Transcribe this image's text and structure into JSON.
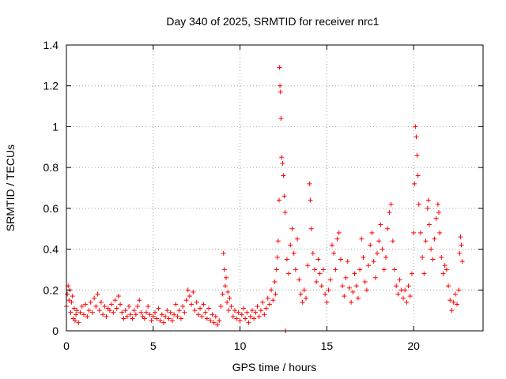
{
  "chart_data": {
    "type": "scatter",
    "title": "Day 340 of 2025, SRMTID for receiver nrc1",
    "xlabel": "GPS time / hours",
    "ylabel": "SRMTID / TECUs",
    "xlim": [
      0,
      24
    ],
    "ylim": [
      0,
      1.4
    ],
    "xticks": [
      0,
      5,
      10,
      15,
      20
    ],
    "xtick_labels": [
      "0",
      "5",
      "10",
      "15",
      "20"
    ],
    "yticks": [
      0,
      0.2,
      0.4,
      0.6,
      0.8,
      1.0,
      1.2,
      1.4
    ],
    "ytick_labels": [
      "0",
      "0.2",
      "0.4",
      "0.6",
      "0.8",
      "1",
      "1.2",
      "1.4"
    ],
    "grid": true,
    "marker": "+",
    "marker_color": "#ff0000",
    "series": [
      {
        "name": "SRMTID",
        "points": [
          [
            0.0,
            0.12
          ],
          [
            0.05,
            0.18
          ],
          [
            0.1,
            0.22
          ],
          [
            0.15,
            0.15
          ],
          [
            0.2,
            0.2
          ],
          [
            0.25,
            0.09
          ],
          [
            0.3,
            0.14
          ],
          [
            0.35,
            0.17
          ],
          [
            0.4,
            0.06
          ],
          [
            0.45,
            0.11
          ],
          [
            0.5,
            0.05
          ],
          [
            0.55,
            0.08
          ],
          [
            0.6,
            0.1
          ],
          [
            0.7,
            0.04
          ],
          [
            0.8,
            0.09
          ],
          [
            0.9,
            0.12
          ],
          [
            1.0,
            0.08
          ],
          [
            1.1,
            0.13
          ],
          [
            1.2,
            0.07
          ],
          [
            1.3,
            0.1
          ],
          [
            1.4,
            0.14
          ],
          [
            1.5,
            0.09
          ],
          [
            1.6,
            0.16
          ],
          [
            1.7,
            0.12
          ],
          [
            1.8,
            0.18
          ],
          [
            1.9,
            0.1
          ],
          [
            2.0,
            0.14
          ],
          [
            2.1,
            0.08
          ],
          [
            2.2,
            0.12
          ],
          [
            2.3,
            0.07
          ],
          [
            2.4,
            0.11
          ],
          [
            2.5,
            0.1
          ],
          [
            2.6,
            0.13
          ],
          [
            2.7,
            0.09
          ],
          [
            2.8,
            0.15
          ],
          [
            2.9,
            0.11
          ],
          [
            3.0,
            0.17
          ],
          [
            3.1,
            0.13
          ],
          [
            3.2,
            0.09
          ],
          [
            3.3,
            0.06
          ],
          [
            3.4,
            0.1
          ],
          [
            3.5,
            0.07
          ],
          [
            3.6,
            0.12
          ],
          [
            3.7,
            0.08
          ],
          [
            3.8,
            0.06
          ],
          [
            3.9,
            0.1
          ],
          [
            4.0,
            0.08
          ],
          [
            4.1,
            0.12
          ],
          [
            4.2,
            0.15
          ],
          [
            4.3,
            0.09
          ],
          [
            4.4,
            0.07
          ],
          [
            4.5,
            0.06
          ],
          [
            4.6,
            0.09
          ],
          [
            4.7,
            0.12
          ],
          [
            4.8,
            0.08
          ],
          [
            4.9,
            0.05
          ],
          [
            5.0,
            0.07
          ],
          [
            5.1,
            0.09
          ],
          [
            5.2,
            0.06
          ],
          [
            5.3,
            0.11
          ],
          [
            5.4,
            0.05
          ],
          [
            5.5,
            0.08
          ],
          [
            5.6,
            0.04
          ],
          [
            5.7,
            0.07
          ],
          [
            5.8,
            0.1
          ],
          [
            5.9,
            0.06
          ],
          [
            6.0,
            0.09
          ],
          [
            6.1,
            0.05
          ],
          [
            6.2,
            0.08
          ],
          [
            6.3,
            0.13
          ],
          [
            6.4,
            0.07
          ],
          [
            6.5,
            0.1
          ],
          [
            6.6,
            0.06
          ],
          [
            6.7,
            0.12
          ],
          [
            6.8,
            0.09
          ],
          [
            6.9,
            0.15
          ],
          [
            7.0,
            0.2
          ],
          [
            7.1,
            0.17
          ],
          [
            7.2,
            0.13
          ],
          [
            7.3,
            0.19
          ],
          [
            7.4,
            0.1
          ],
          [
            7.5,
            0.14
          ],
          [
            7.6,
            0.08
          ],
          [
            7.7,
            0.11
          ],
          [
            7.8,
            0.07
          ],
          [
            7.9,
            0.13
          ],
          [
            8.0,
            0.09
          ],
          [
            8.1,
            0.06
          ],
          [
            8.2,
            0.11
          ],
          [
            8.3,
            0.05
          ],
          [
            8.4,
            0.08
          ],
          [
            8.5,
            0.04
          ],
          [
            8.6,
            0.07
          ],
          [
            8.7,
            0.03
          ],
          [
            8.8,
            0.05
          ],
          [
            8.9,
            0.12
          ],
          [
            9.0,
            0.18
          ],
          [
            9.05,
            0.38
          ],
          [
            9.1,
            0.3
          ],
          [
            9.15,
            0.22
          ],
          [
            9.2,
            0.26
          ],
          [
            9.25,
            0.14
          ],
          [
            9.3,
            0.19
          ],
          [
            9.35,
            0.1
          ],
          [
            9.4,
            0.16
          ],
          [
            9.5,
            0.12
          ],
          [
            9.6,
            0.07
          ],
          [
            9.7,
            0.1
          ],
          [
            9.8,
            0.06
          ],
          [
            9.9,
            0.09
          ],
          [
            10.0,
            0.05
          ],
          [
            10.1,
            0.08
          ],
          [
            10.2,
            0.11
          ],
          [
            10.3,
            0.06
          ],
          [
            10.4,
            0.09
          ],
          [
            10.5,
            0.04
          ],
          [
            10.6,
            0.07
          ],
          [
            10.7,
            0.1
          ],
          [
            10.8,
            0.06
          ],
          [
            10.9,
            0.09
          ],
          [
            11.0,
            0.12
          ],
          [
            11.1,
            0.07
          ],
          [
            11.2,
            0.1
          ],
          [
            11.3,
            0.14
          ],
          [
            11.4,
            0.08
          ],
          [
            11.5,
            0.11
          ],
          [
            11.6,
            0.16
          ],
          [
            11.7,
            0.13
          ],
          [
            11.8,
            0.2
          ],
          [
            11.9,
            0.15
          ],
          [
            12.0,
            0.24
          ],
          [
            12.05,
            0.18
          ],
          [
            12.1,
            0.3
          ],
          [
            12.15,
            0.36
          ],
          [
            12.2,
            0.44
          ],
          [
            12.25,
            0.64
          ],
          [
            12.28,
            1.29
          ],
          [
            12.3,
            1.2
          ],
          [
            12.33,
            1.17
          ],
          [
            12.36,
            1.04
          ],
          [
            12.4,
            0.85
          ],
          [
            12.45,
            0.82
          ],
          [
            12.5,
            0.76
          ],
          [
            12.55,
            0.66
          ],
          [
            12.6,
            0.58
          ],
          [
            12.62,
            0.0
          ],
          [
            12.7,
            0.35
          ],
          [
            12.8,
            0.28
          ],
          [
            12.9,
            0.42
          ],
          [
            13.0,
            0.5
          ],
          [
            13.1,
            0.38
          ],
          [
            13.2,
            0.3
          ],
          [
            13.3,
            0.45
          ],
          [
            13.4,
            0.25
          ],
          [
            13.5,
            0.18
          ],
          [
            13.6,
            0.14
          ],
          [
            13.7,
            0.2
          ],
          [
            13.8,
            0.16
          ],
          [
            13.9,
            0.32
          ],
          [
            14.0,
            0.72
          ],
          [
            14.05,
            0.64
          ],
          [
            14.1,
            0.5
          ],
          [
            14.2,
            0.38
          ],
          [
            14.3,
            0.3
          ],
          [
            14.4,
            0.24
          ],
          [
            14.5,
            0.35
          ],
          [
            14.6,
            0.28
          ],
          [
            14.7,
            0.22
          ],
          [
            14.8,
            0.3
          ],
          [
            14.9,
            0.18
          ],
          [
            15.0,
            0.14
          ],
          [
            15.1,
            0.2
          ],
          [
            15.2,
            0.25
          ],
          [
            15.3,
            0.42
          ],
          [
            15.4,
            0.38
          ],
          [
            15.5,
            0.3
          ],
          [
            15.6,
            0.45
          ],
          [
            15.7,
            0.48
          ],
          [
            15.8,
            0.35
          ],
          [
            15.9,
            0.22
          ],
          [
            16.0,
            0.17
          ],
          [
            16.1,
            0.26
          ],
          [
            16.2,
            0.34
          ],
          [
            16.3,
            0.21
          ],
          [
            16.4,
            0.14
          ],
          [
            16.5,
            0.19
          ],
          [
            16.6,
            0.28
          ],
          [
            16.7,
            0.22
          ],
          [
            16.8,
            0.16
          ],
          [
            16.9,
            0.3
          ],
          [
            17.0,
            0.45
          ],
          [
            17.1,
            0.36
          ],
          [
            17.2,
            0.24
          ],
          [
            17.3,
            0.2
          ],
          [
            17.4,
            0.32
          ],
          [
            17.5,
            0.42
          ],
          [
            17.6,
            0.48
          ],
          [
            17.7,
            0.34
          ],
          [
            17.8,
            0.26
          ],
          [
            17.9,
            0.38
          ],
          [
            18.0,
            0.44
          ],
          [
            18.1,
            0.52
          ],
          [
            18.2,
            0.4
          ],
          [
            18.3,
            0.3
          ],
          [
            18.4,
            0.36
          ],
          [
            18.5,
            0.5
          ],
          [
            18.6,
            0.58
          ],
          [
            18.7,
            0.62
          ],
          [
            18.8,
            0.44
          ],
          [
            18.9,
            0.3
          ],
          [
            19.0,
            0.22
          ],
          [
            19.1,
            0.18
          ],
          [
            19.2,
            0.25
          ],
          [
            19.3,
            0.2
          ],
          [
            19.4,
            0.16
          ],
          [
            19.5,
            0.2
          ],
          [
            19.6,
            0.14
          ],
          [
            19.7,
            0.22
          ],
          [
            19.8,
            0.17
          ],
          [
            19.9,
            0.28
          ],
          [
            20.0,
            0.48
          ],
          [
            20.05,
            0.72
          ],
          [
            20.1,
            1.0
          ],
          [
            20.15,
            0.95
          ],
          [
            20.2,
            0.86
          ],
          [
            20.25,
            0.76
          ],
          [
            20.3,
            0.62
          ],
          [
            20.4,
            0.48
          ],
          [
            20.5,
            0.36
          ],
          [
            20.6,
            0.28
          ],
          [
            20.7,
            0.44
          ],
          [
            20.8,
            0.6
          ],
          [
            20.85,
            0.64
          ],
          [
            20.9,
            0.52
          ],
          [
            21.0,
            0.4
          ],
          [
            21.1,
            0.35
          ],
          [
            21.2,
            0.45
          ],
          [
            21.3,
            0.55
          ],
          [
            21.4,
            0.62
          ],
          [
            21.45,
            0.58
          ],
          [
            21.5,
            0.48
          ],
          [
            21.6,
            0.36
          ],
          [
            21.7,
            0.28
          ],
          [
            21.8,
            0.32
          ],
          [
            21.9,
            0.3
          ],
          [
            22.0,
            0.22
          ],
          [
            22.1,
            0.15
          ],
          [
            22.2,
            0.1
          ],
          [
            22.3,
            0.14
          ],
          [
            22.4,
            0.18
          ],
          [
            22.5,
            0.13
          ],
          [
            22.6,
            0.2
          ],
          [
            22.65,
            0.38
          ],
          [
            22.7,
            0.46
          ],
          [
            22.75,
            0.42
          ],
          [
            22.8,
            0.34
          ]
        ]
      }
    ]
  }
}
